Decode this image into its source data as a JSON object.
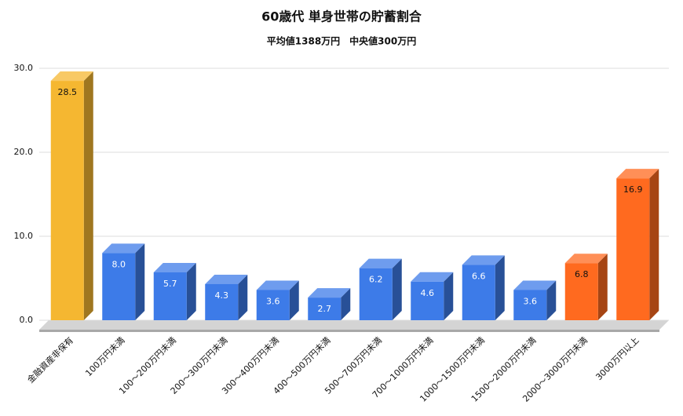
{
  "chart_data": {
    "type": "bar3d",
    "title": "60歳代 単身世帯の貯蓄割合",
    "subtitle": "平均値1388万円　中央値300万円",
    "categories": [
      "金融資産非保有",
      "100万円未満",
      "100～200万円未満",
      "200～300万円未満",
      "300～400万円未満",
      "400～500万円未満",
      "500～700万円未満",
      "700～1000万円未満",
      "1000～1500万円未満",
      "1500～2000万円未満",
      "2000～3000万円未満",
      "3000万円以上"
    ],
    "values": [
      28.5,
      8,
      5.7,
      4.3,
      3.6,
      2.7,
      6.2,
      4.6,
      6.6,
      3.6,
      6.8,
      16.9
    ],
    "value_labels": [
      "28.5",
      "8.0",
      "5.7",
      "4.3",
      "3.6",
      "2.7",
      "6.2",
      "4.6",
      "6.6",
      "3.6",
      "6.8",
      "16.9"
    ],
    "colors": [
      "#f5b731",
      "#3d7be8",
      "#3d7be8",
      "#3d7be8",
      "#3d7be8",
      "#3d7be8",
      "#3d7be8",
      "#3d7be8",
      "#3d7be8",
      "#3d7be8",
      "#ff6a1f",
      "#ff6a1f"
    ],
    "ylim": [
      0,
      30
    ],
    "yticks": [
      {
        "value": 0,
        "label": "0.0"
      },
      {
        "value": 10,
        "label": "10.0"
      },
      {
        "value": 20,
        "label": "20.0"
      },
      {
        "value": 30,
        "label": "30.0"
      }
    ],
    "grid": true
  }
}
